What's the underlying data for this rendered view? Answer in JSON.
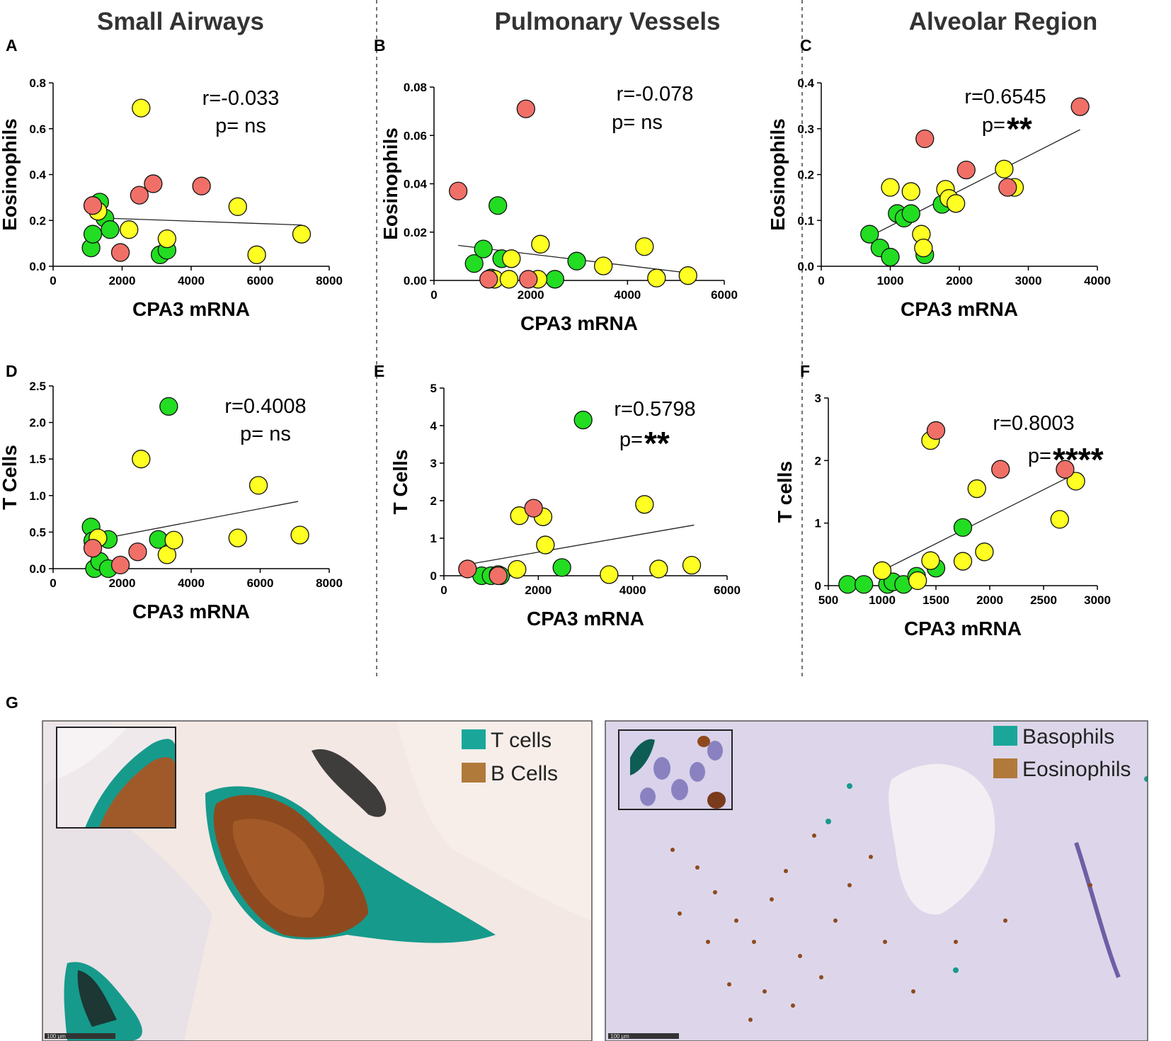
{
  "figure": {
    "column_titles": [
      "Small Airways",
      "Pulmonary Vessels",
      "Alveolar Region"
    ],
    "panel_g_label": "G",
    "histology": {
      "left_legend": [
        {
          "label": "T cells",
          "color": "#1aa79a"
        },
        {
          "label": "B Cells",
          "color": "#b07a3a"
        }
      ],
      "right_legend": [
        {
          "label": "Basophils",
          "color": "#1aa79a"
        },
        {
          "label": "Eosinophils",
          "color": "#b07a3a"
        }
      ],
      "scale_bar_left": "100 μm",
      "scale_bar_right": "100 μm"
    }
  },
  "colors": {
    "green": "#22dd22",
    "yellow": "#ffff22",
    "red": "#f07068",
    "tissue_bg": "#f2ece6",
    "brown": "#8e4a1e",
    "teal": "#1a9a8c",
    "purple": "#8f86c6"
  },
  "chart_data": [
    {
      "id": "A",
      "type": "scatter",
      "xlabel": "CPA3 mRNA",
      "ylabel": "Eosinophils",
      "xlim": [
        0,
        8000
      ],
      "ylim": [
        0,
        0.8
      ],
      "xticks": [
        "0",
        "2000",
        "4000",
        "6000",
        "8000"
      ],
      "yticks": [
        "0.0",
        "0.2",
        "0.4",
        "0.6",
        "0.8"
      ],
      "annotation_r": "r=-0.033",
      "annotation_p": "p= ns",
      "p_stars": "",
      "fit": {
        "x1": 1100,
        "y1": 0.212,
        "x2": 7200,
        "y2": 0.18
      },
      "series": [
        {
          "name": "green",
          "points": [
            [
              1100,
              0.08
            ],
            [
              1150,
              0.14
            ],
            [
              1350,
              0.28
            ],
            [
              1500,
              0.21
            ],
            [
              1650,
              0.16
            ],
            [
              3100,
              0.05
            ],
            [
              3300,
              0.07
            ]
          ]
        },
        {
          "name": "yellow",
          "points": [
            [
              1300,
              0.24
            ],
            [
              2200,
              0.16
            ],
            [
              2550,
              0.69
            ],
            [
              3300,
              0.12
            ],
            [
              5350,
              0.26
            ],
            [
              5900,
              0.05
            ],
            [
              7200,
              0.14
            ]
          ]
        },
        {
          "name": "red",
          "points": [
            [
              1150,
              0.265
            ],
            [
              1950,
              0.06
            ],
            [
              2500,
              0.31
            ],
            [
              2900,
              0.36
            ],
            [
              4300,
              0.35
            ]
          ]
        }
      ]
    },
    {
      "id": "B",
      "type": "scatter",
      "xlabel": "CPA3 mRNA",
      "ylabel": "Eosinophils",
      "xlim": [
        0,
        6000
      ],
      "ylim": [
        0,
        0.08
      ],
      "xticks": [
        "0",
        "2000",
        "4000",
        "6000"
      ],
      "yticks": [
        "0.00",
        "0.02",
        "0.04",
        "0.06",
        "0.08"
      ],
      "annotation_r": "r=-0.078",
      "annotation_p": "p= ns",
      "p_stars": "",
      "fit": {
        "x1": 500,
        "y1": 0.0145,
        "x2": 5300,
        "y2": 0.003
      },
      "series": [
        {
          "name": "green",
          "points": [
            [
              830,
              0.007
            ],
            [
              1020,
              0.013
            ],
            [
              1180,
              0.001
            ],
            [
              1320,
              0.031
            ],
            [
              1400,
              0.009
            ],
            [
              2500,
              0.0005
            ],
            [
              2950,
              0.008
            ]
          ]
        },
        {
          "name": "yellow",
          "points": [
            [
              1250,
              0.0005
            ],
            [
              1550,
              0.0005
            ],
            [
              1600,
              0.009
            ],
            [
              2150,
              0.0005
            ],
            [
              2200,
              0.015
            ],
            [
              3500,
              0.006
            ],
            [
              4350,
              0.014
            ],
            [
              4600,
              0.001
            ],
            [
              5250,
              0.002
            ]
          ]
        },
        {
          "name": "red",
          "points": [
            [
              500,
              0.037
            ],
            [
              1130,
              0.0005
            ],
            [
              1950,
              0.0005
            ],
            [
              1900,
              0.071
            ]
          ]
        }
      ]
    },
    {
      "id": "C",
      "type": "scatter",
      "xlabel": "CPA3 mRNA",
      "ylabel": "Eosinophils",
      "xlim": [
        0,
        4000
      ],
      "ylim": [
        0,
        0.4
      ],
      "xticks": [
        "0",
        "1000",
        "2000",
        "3000",
        "4000"
      ],
      "yticks": [
        "0.0",
        "0.1",
        "0.2",
        "0.3",
        "0.4"
      ],
      "annotation_r": "r=0.6545",
      "annotation_p": "p=",
      "p_stars": "**",
      "fit": {
        "x1": 700,
        "y1": 0.065,
        "x2": 3750,
        "y2": 0.298
      },
      "series": [
        {
          "name": "green",
          "points": [
            [
              700,
              0.07
            ],
            [
              850,
              0.04
            ],
            [
              1000,
              0.02
            ],
            [
              1100,
              0.115
            ],
            [
              1200,
              0.105
            ],
            [
              1300,
              0.115
            ],
            [
              1500,
              0.025
            ],
            [
              1750,
              0.135
            ]
          ]
        },
        {
          "name": "yellow",
          "points": [
            [
              1000,
              0.172
            ],
            [
              1300,
              0.163
            ],
            [
              1450,
              0.07
            ],
            [
              1480,
              0.04
            ],
            [
              1800,
              0.168
            ],
            [
              1850,
              0.148
            ],
            [
              1950,
              0.137
            ],
            [
              2650,
              0.212
            ],
            [
              2800,
              0.172
            ]
          ]
        },
        {
          "name": "red",
          "points": [
            [
              1500,
              0.278
            ],
            [
              2100,
              0.21
            ],
            [
              2700,
              0.172
            ],
            [
              3750,
              0.348
            ]
          ]
        }
      ]
    },
    {
      "id": "D",
      "type": "scatter",
      "xlabel": "CPA3 mRNA",
      "ylabel": "T Cells",
      "xlim": [
        0,
        8000
      ],
      "ylim": [
        0,
        2.5
      ],
      "xticks": [
        "0",
        "2000",
        "4000",
        "6000",
        "8000"
      ],
      "yticks": [
        "0.0",
        "0.5",
        "1.0",
        "1.5",
        "2.0",
        "2.5"
      ],
      "annotation_r": "r=0.4008",
      "annotation_p": "p= ns",
      "p_stars": "",
      "fit": {
        "x1": 1100,
        "y1": 0.38,
        "x2": 7100,
        "y2": 0.92
      },
      "series": [
        {
          "name": "green",
          "points": [
            [
              1100,
              0.57
            ],
            [
              1150,
              0.38
            ],
            [
              1200,
              0.0
            ],
            [
              1350,
              0.1
            ],
            [
              1600,
              0.0
            ],
            [
              1600,
              0.4
            ],
            [
              3050,
              0.4
            ],
            [
              3350,
              2.22
            ]
          ]
        },
        {
          "name": "yellow",
          "points": [
            [
              1300,
              0.42
            ],
            [
              2550,
              1.5
            ],
            [
              3300,
              0.19
            ],
            [
              3500,
              0.39
            ],
            [
              5350,
              0.42
            ],
            [
              5950,
              1.14
            ],
            [
              7150,
              0.46
            ]
          ]
        },
        {
          "name": "red",
          "points": [
            [
              1150,
              0.28
            ],
            [
              1950,
              0.05
            ],
            [
              2450,
              0.23
            ]
          ]
        }
      ]
    },
    {
      "id": "E",
      "type": "scatter",
      "xlabel": "CPA3 mRNA",
      "ylabel": "T Cells",
      "xlim": [
        0,
        6000
      ],
      "ylim": [
        0,
        5
      ],
      "xticks": [
        "0",
        "2000",
        "4000",
        "6000"
      ],
      "yticks": [
        "0",
        "1",
        "2",
        "3",
        "4",
        "5"
      ],
      "annotation_r": "r=0.5798",
      "annotation_p": "p=",
      "p_stars": "**",
      "fit": {
        "x1": 500,
        "y1": 0.3,
        "x2": 5300,
        "y2": 1.35
      },
      "series": [
        {
          "name": "green",
          "points": [
            [
              800,
              0.0
            ],
            [
              1000,
              0.0
            ],
            [
              1150,
              0.03
            ],
            [
              1200,
              0.0
            ],
            [
              2500,
              0.22
            ],
            [
              2950,
              4.15
            ]
          ]
        },
        {
          "name": "yellow",
          "points": [
            [
              1550,
              0.17
            ],
            [
              1600,
              1.6
            ],
            [
              2100,
              1.57
            ],
            [
              2150,
              0.82
            ],
            [
              3500,
              0.03
            ],
            [
              4250,
              1.9
            ],
            [
              4550,
              0.18
            ],
            [
              5250,
              0.28
            ]
          ]
        },
        {
          "name": "red",
          "points": [
            [
              500,
              0.18
            ],
            [
              1150,
              0.0
            ],
            [
              1900,
              1.8
            ]
          ]
        }
      ]
    },
    {
      "id": "F",
      "type": "scatter",
      "xlabel": "CPA3 mRNA",
      "ylabel": "T cells",
      "xlim": [
        500,
        3000
      ],
      "ylim": [
        0,
        3
      ],
      "xticks": [
        "500",
        "1000",
        "1500",
        "2000",
        "2500",
        "3000"
      ],
      "yticks": [
        "0",
        "1",
        "2",
        "3"
      ],
      "annotation_r": "r=0.8003",
      "annotation_p": "p=",
      "p_stars": "****",
      "fit": {
        "x1": 1000,
        "y1": 0.24,
        "x2": 2750,
        "y2": 1.75
      },
      "series": [
        {
          "name": "green",
          "points": [
            [
              680,
              0.02
            ],
            [
              830,
              0.02
            ],
            [
              1050,
              0.02
            ],
            [
              1100,
              0.06
            ],
            [
              1200,
              0.02
            ],
            [
              1320,
              0.15
            ],
            [
              1500,
              0.28
            ],
            [
              1750,
              0.93
            ]
          ]
        },
        {
          "name": "yellow",
          "points": [
            [
              1000,
              0.24
            ],
            [
              1330,
              0.08
            ],
            [
              1450,
              2.32
            ],
            [
              1450,
              0.4
            ],
            [
              1750,
              0.39
            ],
            [
              1880,
              1.55
            ],
            [
              1950,
              0.54
            ],
            [
              2650,
              1.06
            ],
            [
              2800,
              1.67
            ]
          ]
        },
        {
          "name": "red",
          "points": [
            [
              1500,
              2.48
            ],
            [
              2100,
              1.86
            ],
            [
              2700,
              1.86
            ]
          ]
        }
      ]
    }
  ]
}
